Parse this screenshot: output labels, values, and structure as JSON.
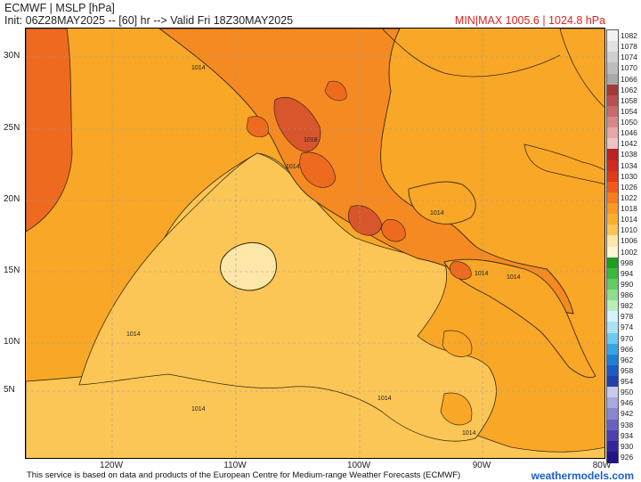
{
  "header": {
    "title": "ECMWF | MSLP [hPa]",
    "init": "Init: 06Z28MAY2025 -- [60] hr --> Valid Fri 18Z30MAY2025",
    "minmax": "MIN|MAX 1005.6 | 1024.8 hPa"
  },
  "map": {
    "lat_labels": [
      "30N",
      "25N",
      "20N",
      "15N",
      "10N",
      "5N"
    ],
    "lon_labels": [
      "120W",
      "110W",
      "100W",
      "90W",
      "80W"
    ],
    "contour_labels": [
      "1014",
      "1018",
      "1014",
      "1014",
      "1014",
      "1014",
      "1014",
      "1014",
      "1014",
      "1014"
    ],
    "colors": {
      "ocean_base": "#fcc656",
      "mid": "#f9a727",
      "high": "#f58a22",
      "higher": "#ee6a1f",
      "terrain": "#d9552b",
      "low_pocket": "#fde7a8",
      "line": "#3a2a10"
    }
  },
  "colorbar": {
    "labels": [
      "1082",
      "1078",
      "1074",
      "1070",
      "1066",
      "1062",
      "1058",
      "1054",
      "1050",
      "1046",
      "1042",
      "1038",
      "1034",
      "1030",
      "1026",
      "1022",
      "1018",
      "1014",
      "1010",
      "1006",
      "1002",
      "998",
      "994",
      "990",
      "986",
      "982",
      "978",
      "974",
      "970",
      "966",
      "962",
      "958",
      "954",
      "950",
      "946",
      "942",
      "938",
      "934",
      "930",
      "926"
    ],
    "colors": [
      "#f2f2f2",
      "#e2e2e2",
      "#d0d0d0",
      "#bdbdbd",
      "#a9a9a9",
      "#a33a3a",
      "#b85050",
      "#c86a6a",
      "#d88888",
      "#e6a8a8",
      "#f0c4c4",
      "#bb2222",
      "#d02a1f",
      "#e0391a",
      "#ef5a1a",
      "#f57d1f",
      "#f99a25",
      "#fbb02c",
      "#fcc656",
      "#fde7a8",
      "#fff7d6",
      "#1e9e1e",
      "#3cb83c",
      "#62cc62",
      "#8ede8e",
      "#b8eeb8",
      "#d6f3fb",
      "#a9e4f6",
      "#6cc9ef",
      "#35a5e4",
      "#1d7fd6",
      "#1a5cc4",
      "#2240a8",
      "#c9c9ee",
      "#aaa8e0",
      "#8a86d0",
      "#6a62c0",
      "#4c40ae",
      "#34249a",
      "#221486"
    ]
  },
  "footer": {
    "note": "This service is based on data and products of the European Centre for Medium-range Weather Forecasts (ECMWF)",
    "site": "weathermodels.com"
  }
}
